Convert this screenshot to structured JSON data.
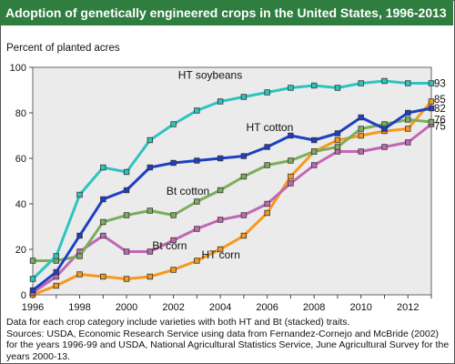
{
  "chart_data": {
    "type": "line",
    "title": "Adoption of genetically engineered crops in the United States, 1996-2013",
    "ylabel": "Percent of planted acres",
    "xlabel": "",
    "ylim": [
      0,
      100
    ],
    "xlim": [
      1996,
      2013
    ],
    "y_ticks": [
      0,
      20,
      40,
      60,
      80,
      100
    ],
    "x_ticks": [
      1996,
      1998,
      2000,
      2002,
      2004,
      2006,
      2008,
      2010,
      2012
    ],
    "grid": false,
    "x": [
      1996,
      1997,
      1998,
      1999,
      2000,
      2001,
      2002,
      2003,
      2004,
      2005,
      2006,
      2007,
      2008,
      2009,
      2010,
      2011,
      2012,
      2013
    ],
    "series": [
      {
        "name": "HT soybeans",
        "color": "#2ec4be",
        "end_label": "93",
        "values": [
          7,
          17,
          44,
          56,
          54,
          68,
          75,
          81,
          85,
          87,
          89,
          91,
          92,
          91,
          93,
          94,
          93,
          93
        ]
      },
      {
        "name": "HT cotton",
        "color": "#1e3fc2",
        "end_label": "82",
        "values": [
          2,
          10,
          26,
          42,
          46,
          56,
          58,
          59,
          60,
          61,
          65,
          70,
          68,
          71,
          78,
          73,
          80,
          82
        ]
      },
      {
        "name": "Bt cotton",
        "color": "#7bad5c",
        "end_label": "76",
        "values": [
          15,
          15,
          17,
          32,
          35,
          37,
          35,
          41,
          46,
          52,
          57,
          59,
          63,
          65,
          73,
          75,
          77,
          76
        ]
      },
      {
        "name": "Bt corn",
        "color": "#c166b4",
        "end_label": "75",
        "values": [
          1,
          8,
          19,
          26,
          19,
          19,
          24,
          29,
          33,
          35,
          40,
          49,
          57,
          63,
          63,
          65,
          67,
          75
        ]
      },
      {
        "name": "HT corn",
        "color": "#f7981d",
        "end_label": "85",
        "values": [
          0,
          4,
          9,
          8,
          7,
          8,
          11,
          15,
          20,
          26,
          36,
          52,
          63,
          68,
          70,
          72,
          73,
          85
        ]
      }
    ],
    "line_labels": [
      "HT soybeans",
      "HT cotton",
      "Bt cotton",
      "Bt corn",
      "HT corn"
    ]
  },
  "footnotes": {
    "line1": "Data for each crop category include varieties with both HT and Bt (stacked) traits.",
    "line2": "Sources: USDA, Economic Research Service using data from Fernandez-Cornejo and McBride (2002) for the years 1996-99 and USDA, National Agricultural Statistics Service, June Agricultural Survey for the years 2000-13."
  },
  "colors": {
    "title_bar": "#2f7d3f",
    "plot_background": "#ebebeb"
  }
}
